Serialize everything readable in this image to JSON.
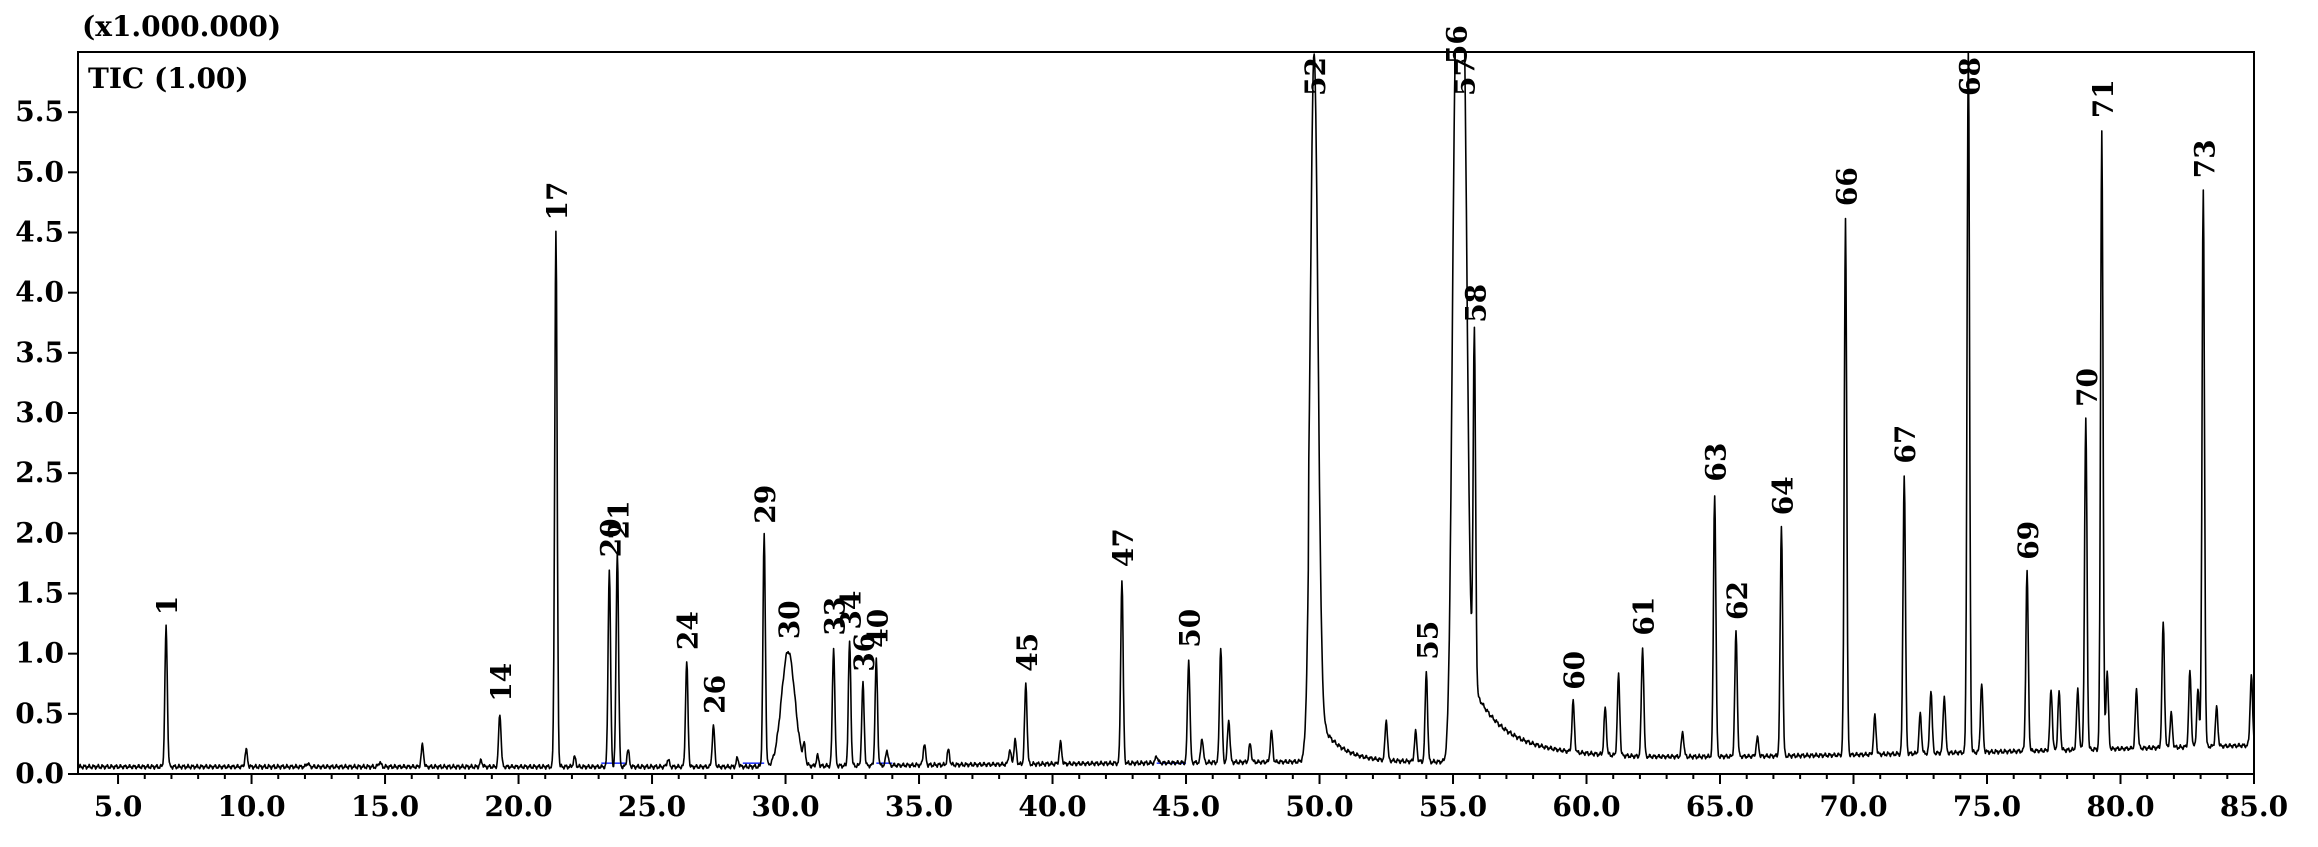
{
  "chart_data": {
    "type": "line",
    "multiplier_label": "(x1.000.000)",
    "trace_label": "TIC (1.00)",
    "xlim": [
      3.5,
      85.0
    ],
    "ylim": [
      0,
      6.0
    ],
    "x_ticks": [
      5,
      10,
      15,
      20,
      25,
      30,
      35,
      40,
      45,
      50,
      55,
      60,
      65,
      70,
      75,
      80,
      85
    ],
    "x_tick_labels": [
      "5.0",
      "10.0",
      "15.0",
      "20.0",
      "25.0",
      "30.0",
      "35.0",
      "40.0",
      "45.0",
      "50.0",
      "55.0",
      "60.0",
      "65.0",
      "70.0",
      "75.0",
      "80.0",
      "85.0"
    ],
    "y_ticks": [
      0,
      0.5,
      1.0,
      1.5,
      2.0,
      2.5,
      3.0,
      3.5,
      4.0,
      4.5,
      5.0,
      5.5
    ],
    "y_tick_labels": [
      "0.0",
      "0.5",
      "1.0",
      "1.5",
      "2.0",
      "2.5",
      "3.0",
      "3.5",
      "4.0",
      "4.5",
      "5.0",
      "5.5"
    ],
    "grid": false,
    "labeled_peaks": [
      {
        "label": "1",
        "x": 6.8,
        "y": 1.22
      },
      {
        "label": "14",
        "x": 19.3,
        "y": 0.5
      },
      {
        "label": "17",
        "x": 21.4,
        "y": 4.5
      },
      {
        "label": "20",
        "x": 23.4,
        "y": 1.7
      },
      {
        "label": "21",
        "x": 23.7,
        "y": 1.85
      },
      {
        "label": "24",
        "x": 26.3,
        "y": 0.93
      },
      {
        "label": "26",
        "x": 27.3,
        "y": 0.4
      },
      {
        "label": "29",
        "x": 29.2,
        "y": 1.98
      },
      {
        "label": "30",
        "x": 30.1,
        "y": 1.02
      },
      {
        "label": "33",
        "x": 31.8,
        "y": 1.05
      },
      {
        "label": "34",
        "x": 32.4,
        "y": 1.1
      },
      {
        "label": "36",
        "x": 32.9,
        "y": 0.75
      },
      {
        "label": "40",
        "x": 33.4,
        "y": 0.95
      },
      {
        "label": "45",
        "x": 39.0,
        "y": 0.75
      },
      {
        "label": "47",
        "x": 42.6,
        "y": 1.62
      },
      {
        "label": "50",
        "x": 45.1,
        "y": 0.95
      },
      {
        "label": "52",
        "x": 49.8,
        "y": 6.0
      },
      {
        "label": "55",
        "x": 54.0,
        "y": 0.85
      },
      {
        "label": "56",
        "x": 55.1,
        "y": 5.8
      },
      {
        "label": "57",
        "x": 55.4,
        "y": 6.0
      },
      {
        "label": "58",
        "x": 55.8,
        "y": 3.65
      },
      {
        "label": "60",
        "x": 59.5,
        "y": 0.6
      },
      {
        "label": "61",
        "x": 62.1,
        "y": 1.05
      },
      {
        "label": "62",
        "x": 65.6,
        "y": 1.18
      },
      {
        "label": "63",
        "x": 64.8,
        "y": 2.33
      },
      {
        "label": "64",
        "x": 67.3,
        "y": 2.05
      },
      {
        "label": "66",
        "x": 69.7,
        "y": 4.62
      },
      {
        "label": "67",
        "x": 71.9,
        "y": 2.48
      },
      {
        "label": "68",
        "x": 74.3,
        "y": 6.0
      },
      {
        "label": "69",
        "x": 76.5,
        "y": 1.68
      },
      {
        "label": "70",
        "x": 78.7,
        "y": 2.95
      },
      {
        "label": "71",
        "x": 79.3,
        "y": 5.35
      },
      {
        "label": "73",
        "x": 83.1,
        "y": 4.85
      }
    ],
    "minor_peaks": [
      {
        "x": 9.8,
        "y": 0.2
      },
      {
        "x": 12.1,
        "y": 0.09
      },
      {
        "x": 14.8,
        "y": 0.1
      },
      {
        "x": 16.4,
        "y": 0.24
      },
      {
        "x": 18.6,
        "y": 0.11
      },
      {
        "x": 22.1,
        "y": 0.14
      },
      {
        "x": 24.1,
        "y": 0.2
      },
      {
        "x": 25.6,
        "y": 0.12
      },
      {
        "x": 28.2,
        "y": 0.13
      },
      {
        "x": 30.7,
        "y": 0.2
      },
      {
        "x": 31.2,
        "y": 0.15
      },
      {
        "x": 33.8,
        "y": 0.2
      },
      {
        "x": 35.2,
        "y": 0.25
      },
      {
        "x": 36.1,
        "y": 0.2
      },
      {
        "x": 38.4,
        "y": 0.2
      },
      {
        "x": 38.6,
        "y": 0.28
      },
      {
        "x": 40.3,
        "y": 0.26
      },
      {
        "x": 43.9,
        "y": 0.15
      },
      {
        "x": 45.6,
        "y": 0.3
      },
      {
        "x": 46.3,
        "y": 1.06
      },
      {
        "x": 46.6,
        "y": 0.45
      },
      {
        "x": 47.4,
        "y": 0.25
      },
      {
        "x": 48.2,
        "y": 0.35
      },
      {
        "x": 52.5,
        "y": 0.45
      },
      {
        "x": 53.6,
        "y": 0.35
      },
      {
        "x": 56.6,
        "y": 0.3
      },
      {
        "x": 60.7,
        "y": 0.55
      },
      {
        "x": 61.2,
        "y": 0.82
      },
      {
        "x": 63.6,
        "y": 0.35
      },
      {
        "x": 66.4,
        "y": 0.3
      },
      {
        "x": 70.8,
        "y": 0.48
      },
      {
        "x": 72.5,
        "y": 0.5
      },
      {
        "x": 72.9,
        "y": 0.7
      },
      {
        "x": 73.4,
        "y": 0.65
      },
      {
        "x": 74.8,
        "y": 0.75
      },
      {
        "x": 77.4,
        "y": 0.7
      },
      {
        "x": 77.7,
        "y": 0.68
      },
      {
        "x": 78.4,
        "y": 0.7
      },
      {
        "x": 79.5,
        "y": 0.85
      },
      {
        "x": 80.6,
        "y": 0.7
      },
      {
        "x": 81.6,
        "y": 1.26
      },
      {
        "x": 81.9,
        "y": 0.5
      },
      {
        "x": 82.6,
        "y": 0.85
      },
      {
        "x": 82.9,
        "y": 0.7
      },
      {
        "x": 83.6,
        "y": 0.55
      },
      {
        "x": 84.9,
        "y": 0.82
      }
    ]
  }
}
